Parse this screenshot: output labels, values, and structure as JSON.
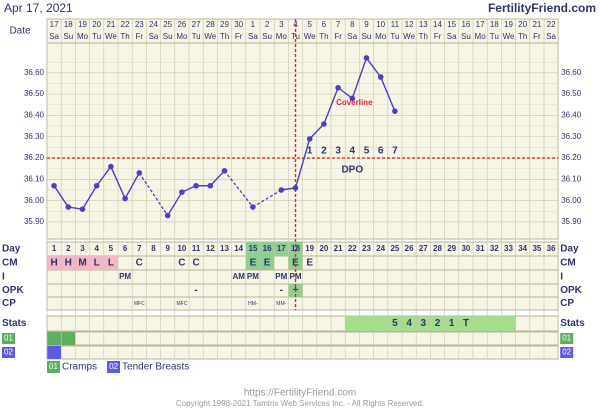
{
  "chart_data": {
    "type": "line",
    "header_date": "Apr 17, 2021",
    "site": "FertilityFriend.com",
    "date_label": "Date",
    "dates": [
      "17",
      "18",
      "19",
      "20",
      "21",
      "22",
      "23",
      "24",
      "25",
      "26",
      "27",
      "28",
      "29",
      "30",
      "1",
      "2",
      "3",
      "4",
      "5",
      "6",
      "7",
      "8",
      "9",
      "10",
      "11",
      "12",
      "13",
      "14",
      "15",
      "16",
      "17",
      "18",
      "19",
      "20",
      "21",
      "22"
    ],
    "weekdays": [
      "Sa",
      "Su",
      "Mo",
      "Tu",
      "We",
      "Th",
      "Fr",
      "Sa",
      "Su",
      "Mo",
      "Tu",
      "We",
      "Th",
      "Fr",
      "Sa",
      "Su",
      "Mo",
      "Tu",
      "We",
      "Th",
      "Fr",
      "Sa",
      "Su",
      "Mo",
      "Tu",
      "We",
      "Th",
      "Fr",
      "Sa",
      "Su",
      "Mo",
      "Tu",
      "We",
      "Th",
      "Fr",
      "Sa"
    ],
    "days": [
      1,
      2,
      3,
      4,
      5,
      6,
      7,
      8,
      9,
      10,
      11,
      12,
      13,
      14,
      15,
      16,
      17,
      18,
      19,
      20,
      21,
      22,
      23,
      24,
      25,
      26,
      27,
      28,
      29,
      30,
      31,
      32,
      33,
      34,
      35,
      36
    ],
    "series": [
      {
        "name": "Temperature",
        "color": "#4b3fc4",
        "values": [
          36.07,
          35.97,
          35.96,
          36.07,
          36.16,
          36.01,
          36.13,
          null,
          35.93,
          36.04,
          36.07,
          36.07,
          36.14,
          null,
          35.97,
          null,
          36.05,
          36.06,
          36.29,
          36.36,
          36.53,
          36.48,
          36.67,
          36.58,
          36.42,
          null,
          null,
          null,
          null,
          null,
          null,
          null,
          null,
          null,
          null,
          null
        ]
      }
    ],
    "ylim": [
      35.82,
      36.74
    ],
    "yticks": [
      {
        "value": 35.9,
        "label": "35.90"
      },
      {
        "value": 36.0,
        "label": "36.00"
      },
      {
        "value": 36.1,
        "label": "36.10"
      },
      {
        "value": 36.2,
        "label": "36.20"
      },
      {
        "value": 36.3,
        "label": "36.30"
      },
      {
        "value": 36.4,
        "label": "36.40"
      },
      {
        "value": 36.5,
        "label": "36.50"
      },
      {
        "value": 36.6,
        "label": "36.60"
      }
    ],
    "grid": true,
    "coverline": 36.2,
    "coverline_label": "Coverline",
    "ovulation_day": 18,
    "dpo_label": "DPO",
    "dpo": [
      null,
      null,
      null,
      null,
      null,
      null,
      null,
      null,
      null,
      null,
      null,
      null,
      null,
      null,
      null,
      null,
      null,
      null,
      1,
      2,
      3,
      4,
      5,
      6,
      7,
      null,
      null,
      null,
      null,
      null,
      null,
      null,
      null,
      null,
      null,
      null
    ],
    "fertile_days": [
      15,
      16,
      17,
      18
    ],
    "row_labels": {
      "day": "Day",
      "cm": "CM",
      "i": "I",
      "opk": "OPK",
      "cp": "CP",
      "stats": "Stats"
    },
    "cm": [
      "H",
      "H",
      "M",
      "L",
      "L",
      null,
      "C",
      null,
      null,
      "C",
      "C",
      null,
      null,
      null,
      "E",
      "E",
      null,
      "E",
      "E",
      null,
      null,
      null,
      null,
      null,
      null,
      null,
      null,
      null,
      null,
      null,
      null,
      null,
      null,
      null,
      null,
      null
    ],
    "cm_pink_days": [
      1,
      2,
      3,
      4,
      5
    ],
    "cm_green_days": [
      15,
      16,
      18
    ],
    "i": [
      null,
      null,
      null,
      null,
      null,
      "PM",
      null,
      null,
      null,
      null,
      null,
      null,
      null,
      "AM",
      "PM",
      null,
      "PM",
      "PM",
      null,
      null,
      null,
      null,
      null,
      null,
      null,
      null,
      null,
      null,
      null,
      null,
      null,
      null,
      null,
      null,
      null,
      null
    ],
    "opk": [
      null,
      null,
      null,
      null,
      null,
      null,
      null,
      null,
      null,
      null,
      "-",
      null,
      null,
      null,
      null,
      null,
      "-",
      "+",
      null,
      null,
      null,
      null,
      null,
      null,
      null,
      null,
      null,
      null,
      null,
      null,
      null,
      null,
      null,
      null,
      null,
      null
    ],
    "opk_green_days": [
      18
    ],
    "cp": [
      null,
      null,
      null,
      null,
      null,
      null,
      "MFC",
      null,
      null,
      "MFC",
      null,
      null,
      null,
      null,
      "HM-",
      null,
      "MM-",
      null,
      null,
      null,
      null,
      null,
      null,
      null,
      null,
      null,
      null,
      null,
      null,
      null,
      null,
      null,
      null,
      null,
      null,
      null
    ],
    "stats": [
      null,
      null,
      null,
      null,
      null,
      null,
      null,
      null,
      null,
      null,
      null,
      null,
      null,
      null,
      null,
      null,
      null,
      null,
      null,
      null,
      null,
      null,
      null,
      null,
      5,
      4,
      3,
      2,
      1,
      "T",
      null,
      null,
      null,
      null,
      null,
      null
    ],
    "stats_band": [
      22,
      33
    ],
    "symptoms": [
      {
        "code": "01",
        "name": "Cramps",
        "color": "#5fae5f",
        "days": [
          1,
          2
        ]
      },
      {
        "code": "02",
        "name": "Tender Breasts",
        "color": "#5b5be6",
        "days": [
          1
        ]
      }
    ],
    "footer_url": "https://FertilityFriend.com",
    "footer_copyright": "Copyright 1998-2021 Tamtris Web Services Inc. - All Rights Reserved."
  }
}
